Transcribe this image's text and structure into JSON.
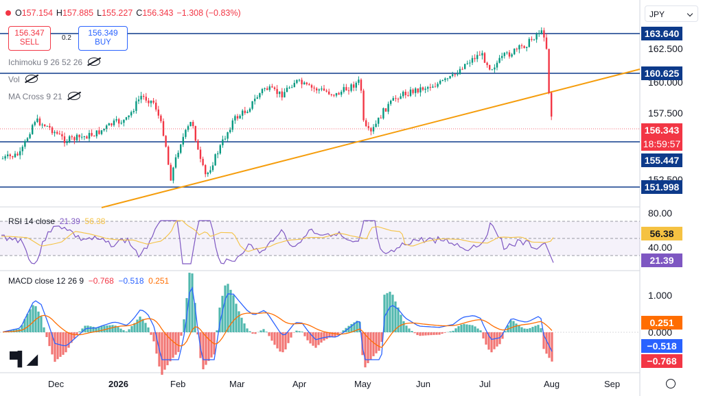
{
  "ohlc": {
    "o_label": "O",
    "o": "157.154",
    "h_label": "H",
    "h": "157.885",
    "l_label": "L",
    "l": "155.227",
    "c_label": "C",
    "c": "156.343",
    "chg": "−1.308 (−0.83%)"
  },
  "trade": {
    "sell_price": "156.347",
    "sell_label": "SELL",
    "spread": "0.2",
    "buy_price": "156.349",
    "buy_label": "BUY"
  },
  "indicators": {
    "ichimoku": "Ichimoku 9 26 52 26",
    "vol": "Vol",
    "ma_cross": "MA Cross 9 21"
  },
  "currency": "JPY",
  "chart_data": {
    "type": "candlestick",
    "x_ticks": [
      "Dec",
      "2026",
      "Feb",
      "Mar",
      "Apr",
      "May",
      "Jun",
      "Jul",
      "Aug",
      "Sep"
    ],
    "y_ticks": [
      "162.500",
      "160.000",
      "157.500",
      "152.500"
    ],
    "price_lines": [
      "163.640",
      "160.625",
      "155.447",
      "151.998"
    ],
    "last_price": "156.343",
    "countdown": "18:59:57",
    "colors": {
      "up": "#089981",
      "down": "#f23645",
      "hline": "#0d3a8a",
      "trend": "#f59d0c"
    },
    "rsi": {
      "label": "RSI 14 close",
      "rsi": "21.39",
      "ma": "56.38",
      "ticks": [
        "80.00",
        "40.00"
      ]
    },
    "macd": {
      "label": "MACD close 12 26 9",
      "hist": "−0.768",
      "macd": "−0.518",
      "signal": "0.251",
      "ticks": [
        "1.000",
        "0.000"
      ]
    }
  }
}
